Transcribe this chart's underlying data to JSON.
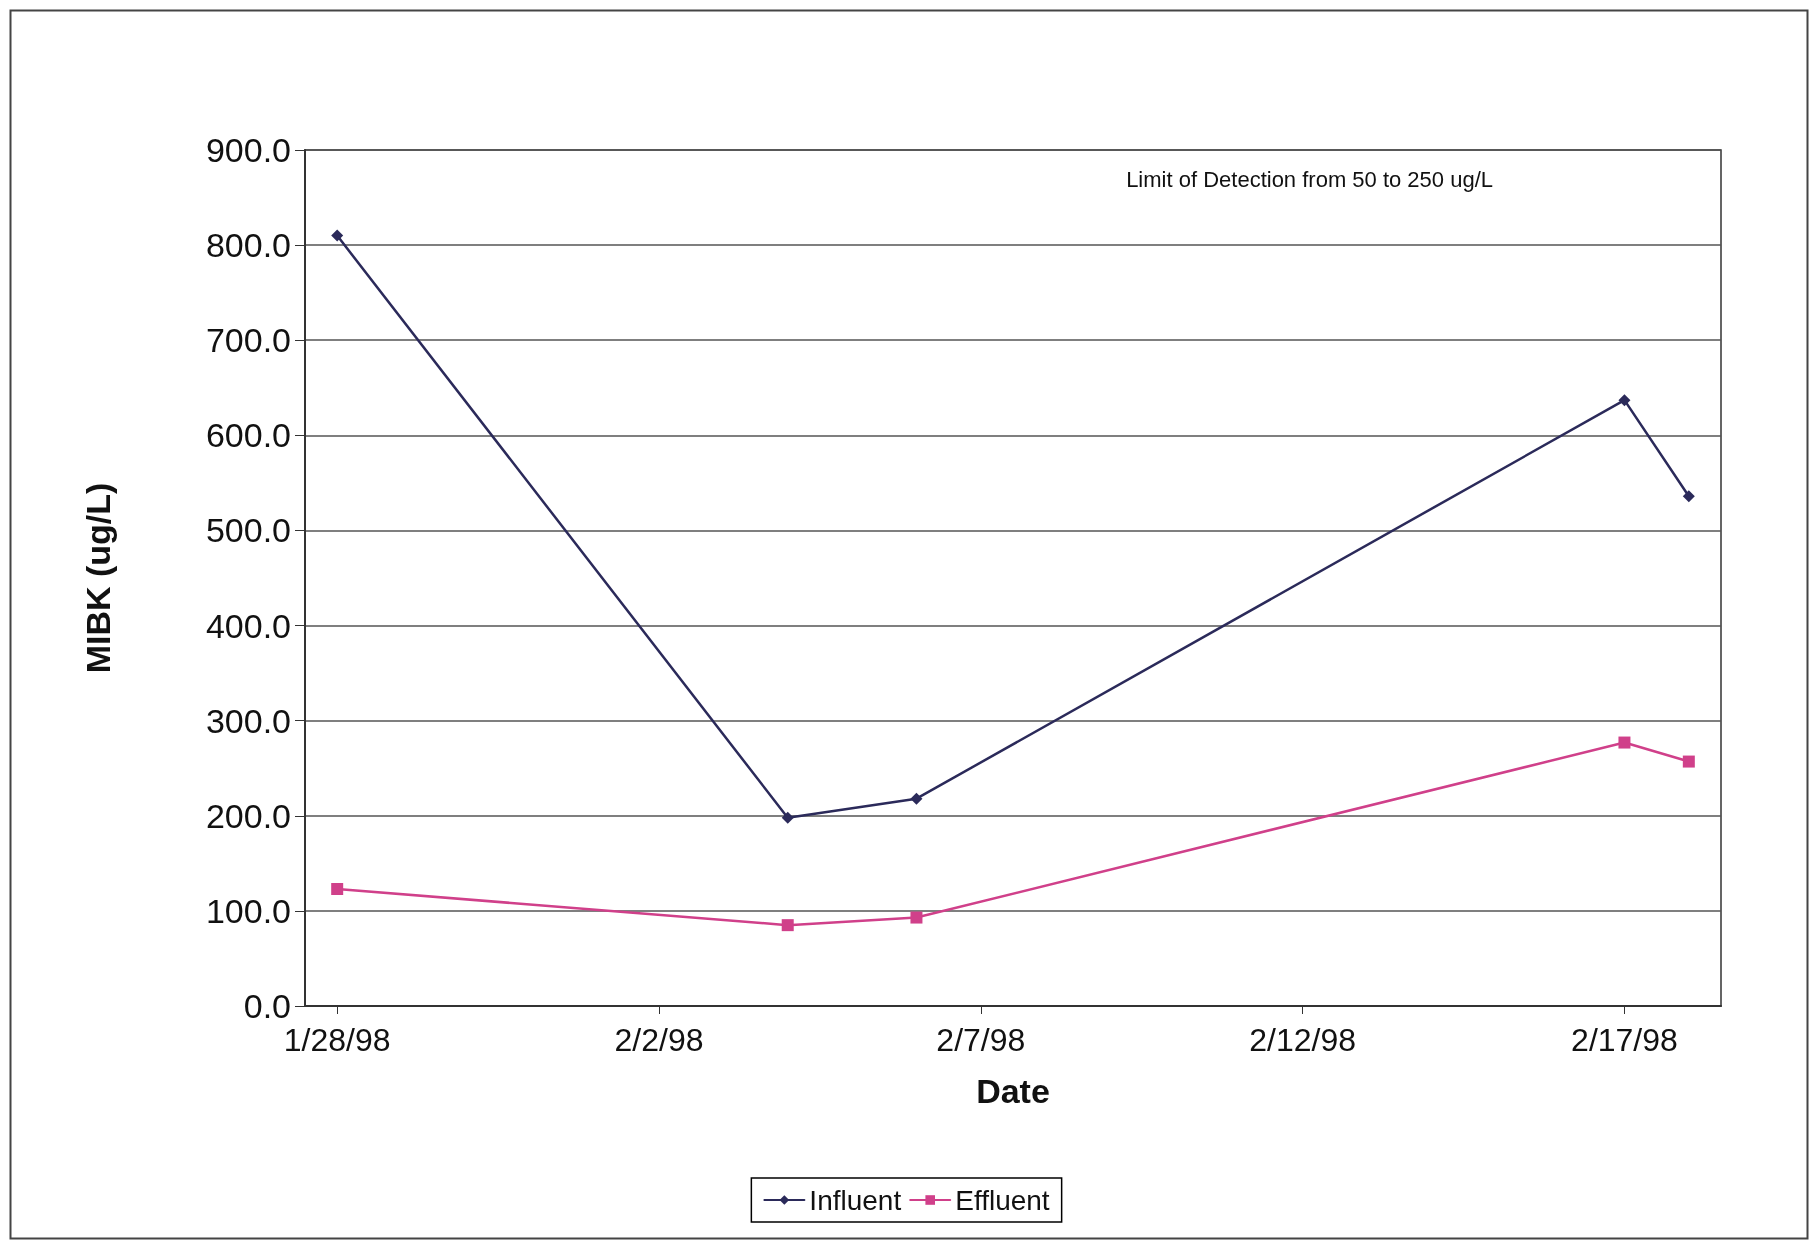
{
  "chart_data": {
    "type": "line",
    "xlabel": "Date",
    "ylabel": "MIBK (ug/L)",
    "x": [
      "1998-01-28",
      "1998-02-04",
      "1998-02-06",
      "1998-02-17",
      "1998-02-18"
    ],
    "series": [
      {
        "name": "Influent",
        "color": "#2b2a5a",
        "marker": "diamond",
        "values": [
          810,
          198,
          218,
          637,
          536
        ]
      },
      {
        "name": "Effluent",
        "color": "#d0408a",
        "marker": "square",
        "values": [
          123,
          85,
          93,
          277,
          257
        ]
      }
    ],
    "xlim": [
      "1998-01-27T12:00",
      "1998-02-18T12:00"
    ],
    "xticks": [
      {
        "value": "1998-01-28",
        "label": "1/28/98"
      },
      {
        "value": "1998-02-02",
        "label": "2/2/98"
      },
      {
        "value": "1998-02-07",
        "label": "2/7/98"
      },
      {
        "value": "1998-02-12",
        "label": "2/12/98"
      },
      {
        "value": "1998-02-17",
        "label": "2/17/98"
      }
    ],
    "ylim": [
      0,
      900
    ],
    "yticks": [
      {
        "value": 0,
        "label": "0.0"
      },
      {
        "value": 100,
        "label": "100.0"
      },
      {
        "value": 200,
        "label": "200.0"
      },
      {
        "value": 300,
        "label": "300.0"
      },
      {
        "value": 400,
        "label": "400.0"
      },
      {
        "value": 500,
        "label": "500.0"
      },
      {
        "value": 600,
        "label": "600.0"
      },
      {
        "value": 700,
        "label": "700.0"
      },
      {
        "value": 800,
        "label": "800.0"
      },
      {
        "value": 900,
        "label": "900.0"
      }
    ],
    "grid": "y",
    "legend": "bottom",
    "line_style": "solid",
    "annotations": [
      "Limit of Detection from 50 to 250 ug/L"
    ]
  }
}
